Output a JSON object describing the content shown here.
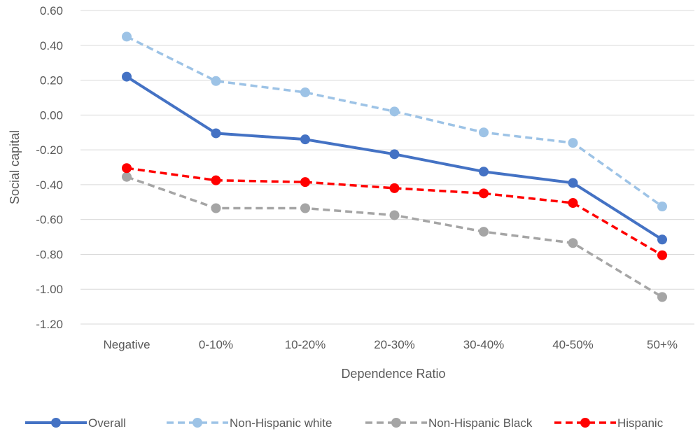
{
  "chart_data": {
    "type": "line",
    "title": "",
    "xlabel": "Dependence Ratio",
    "ylabel": "Social capital",
    "categories": [
      "Negative",
      "0-10%",
      "10-20%",
      "20-30%",
      "30-40%",
      "40-50%",
      "50+%"
    ],
    "ylim": [
      -1.2,
      0.6
    ],
    "yticks": [
      "0.60",
      "0.40",
      "0.20",
      "0.00",
      "-0.20",
      "-0.40",
      "-0.60",
      "-0.80",
      "-1.00",
      "-1.20"
    ],
    "ytick_values": [
      0.6,
      0.4,
      0.2,
      0.0,
      -0.2,
      -0.4,
      -0.6,
      -0.8,
      -1.0,
      -1.2
    ],
    "grid": true,
    "legend_position": "bottom",
    "series": [
      {
        "name": "Overall",
        "color": "#4472C4",
        "dashed": false,
        "values": [
          0.22,
          -0.105,
          -0.14,
          -0.225,
          -0.325,
          -0.39,
          -0.715
        ]
      },
      {
        "name": "Non-Hispanic white",
        "color": "#9DC3E6",
        "dashed": true,
        "values": [
          0.45,
          0.195,
          0.13,
          0.02,
          -0.1,
          -0.16,
          -0.525
        ]
      },
      {
        "name": "Non-Hispanic Black",
        "color": "#A5A5A5",
        "dashed": true,
        "values": [
          -0.355,
          -0.535,
          -0.535,
          -0.575,
          -0.67,
          -0.735,
          -1.045
        ]
      },
      {
        "name": "Hispanic",
        "color": "#FF0000",
        "dashed": true,
        "values": [
          -0.305,
          -0.375,
          -0.385,
          -0.42,
          -0.45,
          -0.505,
          -0.805
        ]
      }
    ]
  }
}
